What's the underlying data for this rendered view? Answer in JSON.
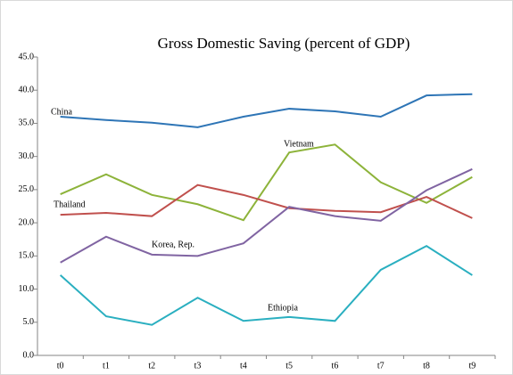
{
  "chart_data": {
    "type": "line",
    "title": "Gross Domestic Saving (percent of GDP)",
    "categories": [
      "t0",
      "t1",
      "t2",
      "t3",
      "t4",
      "t5",
      "t6",
      "t7",
      "t8",
      "t9"
    ],
    "series": [
      {
        "name": "China",
        "color": "#2e75b6",
        "values": [
          36.0,
          35.5,
          35.1,
          34.4,
          36.0,
          37.2,
          36.8,
          36.0,
          39.2,
          39.4
        ]
      },
      {
        "name": "Vietnam",
        "color": "#8db33a",
        "values": [
          24.3,
          27.3,
          24.2,
          22.8,
          20.4,
          30.6,
          31.8,
          26.1,
          23.0,
          26.9
        ]
      },
      {
        "name": "Thailand",
        "color": "#c0504d",
        "values": [
          21.2,
          21.5,
          21.0,
          25.7,
          24.2,
          22.2,
          21.8,
          21.6,
          23.9,
          20.7
        ]
      },
      {
        "name": "Korea, Rep.",
        "color": "#8064a2",
        "values": [
          14.0,
          17.9,
          15.2,
          15.0,
          16.9,
          22.4,
          21.0,
          20.3,
          24.9,
          28.1
        ]
      },
      {
        "name": "Ethiopia",
        "color": "#2aafc0",
        "values": [
          12.1,
          5.9,
          4.6,
          8.7,
          5.2,
          5.8,
          5.2,
          12.9,
          16.5,
          12.1
        ]
      }
    ],
    "ylim": [
      0,
      45
    ],
    "yticks": [
      {
        "value": 0,
        "label": "0.0"
      },
      {
        "value": 5,
        "label": "5.0"
      },
      {
        "value": 10,
        "label": "10.0"
      },
      {
        "value": 15,
        "label": "15.0"
      },
      {
        "value": 20,
        "label": "20.0"
      },
      {
        "value": 25,
        "label": "25.0"
      },
      {
        "value": 30,
        "label": "30.0"
      },
      {
        "value": 35,
        "label": "35.0"
      },
      {
        "value": 40,
        "label": "40.0"
      },
      {
        "value": 45,
        "label": "45.0"
      }
    ],
    "grid": false
  }
}
